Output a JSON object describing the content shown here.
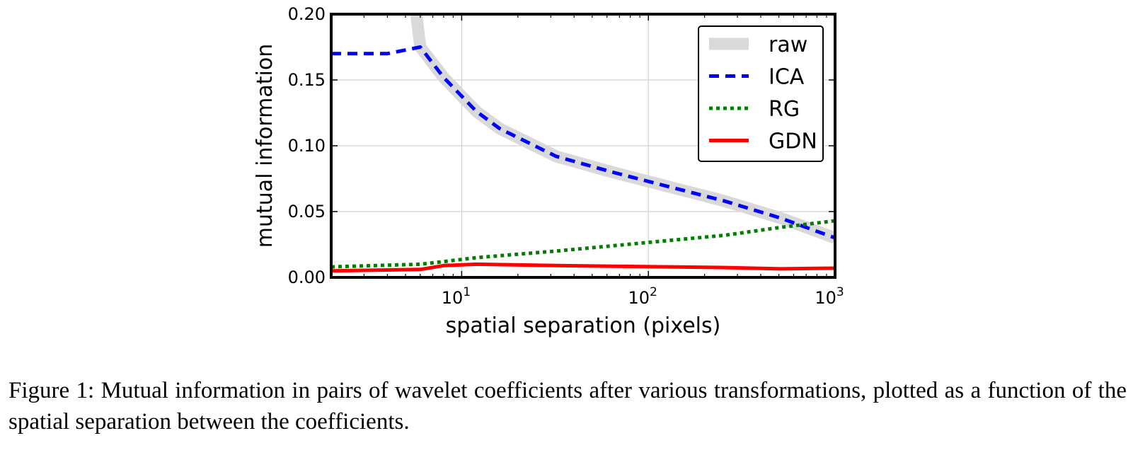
{
  "chart_data": {
    "type": "line",
    "xlabel": "spatial separation (pixels)",
    "ylabel": "mutual information",
    "xscale": "log",
    "xlim": [
      2,
      1000
    ],
    "ylim": [
      0,
      0.2
    ],
    "xticks": [
      {
        "value": 10,
        "base": "10",
        "exp": "1"
      },
      {
        "value": 100,
        "base": "10",
        "exp": "2"
      },
      {
        "value": 1000,
        "base": "10",
        "exp": "3"
      }
    ],
    "yticks": [
      {
        "value": 0,
        "label": "0.00"
      },
      {
        "value": 0.05,
        "label": "0.05"
      },
      {
        "value": 0.1,
        "label": "0.10"
      },
      {
        "value": 0.15,
        "label": "0.15"
      },
      {
        "value": 0.2,
        "label": "0.20"
      }
    ],
    "grid": true,
    "legend_position": "top-right",
    "series": [
      {
        "name": "raw",
        "color": "#d9d9d9",
        "style": "solid-thick",
        "x": [
          5.6,
          6,
          8,
          12,
          16,
          32,
          64,
          128,
          256,
          512,
          1000
        ],
        "y": [
          0.21,
          0.175,
          0.152,
          0.126,
          0.113,
          0.092,
          0.08,
          0.069,
          0.058,
          0.045,
          0.03
        ]
      },
      {
        "name": "ICA",
        "color": "#0000ff",
        "style": "dashed",
        "x": [
          2,
          4,
          6,
          8,
          12,
          16,
          32,
          64,
          128,
          256,
          512,
          1000
        ],
        "y": [
          0.17,
          0.17,
          0.175,
          0.152,
          0.126,
          0.113,
          0.092,
          0.08,
          0.069,
          0.058,
          0.045,
          0.03
        ]
      },
      {
        "name": "RG",
        "color": "#008000",
        "style": "dotted",
        "x": [
          2,
          6,
          8,
          12,
          32,
          64,
          128,
          256,
          512,
          1000
        ],
        "y": [
          0.008,
          0.01,
          0.012,
          0.015,
          0.02,
          0.024,
          0.028,
          0.032,
          0.038,
          0.043
        ]
      },
      {
        "name": "GDN",
        "color": "#ff0000",
        "style": "solid",
        "x": [
          2,
          6,
          8,
          12,
          32,
          64,
          128,
          256,
          512,
          1000
        ],
        "y": [
          0.005,
          0.006,
          0.009,
          0.01,
          0.009,
          0.0085,
          0.008,
          0.0075,
          0.0065,
          0.007
        ]
      }
    ]
  },
  "caption": "Figure 1: Mutual information in pairs of wavelet coefficients after various transformations, plotted as a function of the spatial separation between the coefficients."
}
